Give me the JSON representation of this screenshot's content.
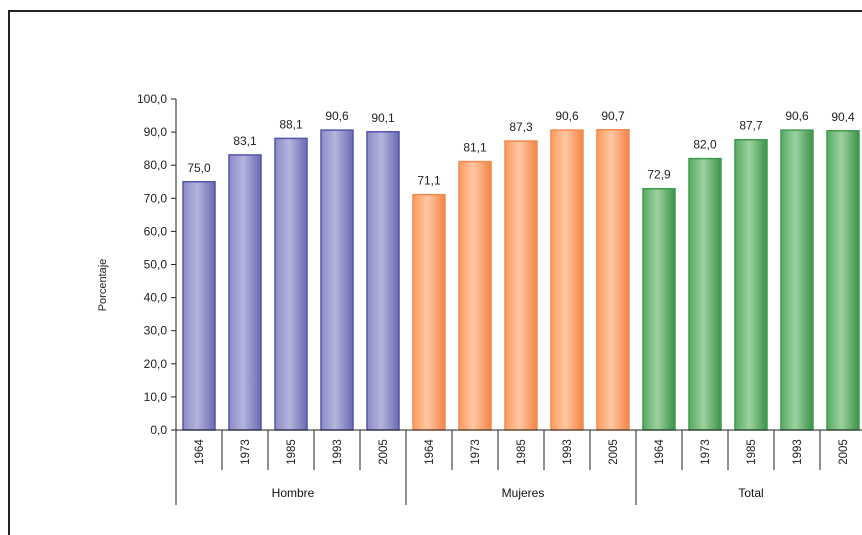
{
  "chart_data": {
    "type": "bar",
    "ylabel": "Porcentaje",
    "ylim": [
      0,
      100
    ],
    "yticks": [
      "0,0",
      "10,0",
      "20,0",
      "30,0",
      "40,0",
      "50,0",
      "60,0",
      "70,0",
      "80,0",
      "90,0",
      "100,0"
    ],
    "grid": false,
    "groups": [
      {
        "name": "Hombre",
        "color": "#5555aa",
        "categories": [
          "1964",
          "1973",
          "1985",
          "1993",
          "2005"
        ],
        "values": [
          75.0,
          83.1,
          88.1,
          90.6,
          90.1
        ],
        "labels": [
          "75,0",
          "83,1",
          "88,1",
          "90,6",
          "90,1"
        ]
      },
      {
        "name": "Mujeres",
        "color": "#f28a4c",
        "categories": [
          "1964",
          "1973",
          "1985",
          "1993",
          "2005"
        ],
        "values": [
          71.1,
          81.1,
          87.3,
          90.6,
          90.7
        ],
        "labels": [
          "71,1",
          "81,1",
          "87,3",
          "90,6",
          "90,7"
        ]
      },
      {
        "name": "Total",
        "color": "#3f9a4f",
        "categories": [
          "1964",
          "1973",
          "1985",
          "1993",
          "2005"
        ],
        "values": [
          72.9,
          82.0,
          87.7,
          90.6,
          90.4
        ],
        "labels": [
          "72,9",
          "82,0",
          "87,7",
          "90,6",
          "90,4"
        ]
      }
    ]
  }
}
